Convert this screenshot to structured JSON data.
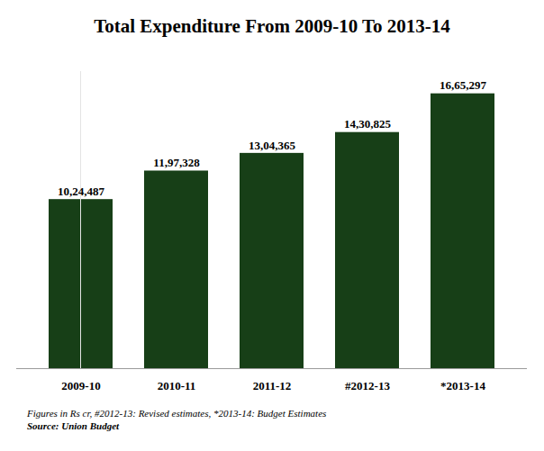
{
  "chart_data": {
    "type": "bar",
    "title": "Total Expenditure From 2009-10 To 2013-14",
    "categories": [
      "2009-10",
      "2010-11",
      "2011-12",
      "#2012-13",
      "*2013-14"
    ],
    "values": [
      1024487,
      1197328,
      1304365,
      1430825,
      1665297
    ],
    "value_labels": [
      "10,24,487",
      "11,97,328",
      "13,04,365",
      "14,30,825",
      "16,65,297"
    ],
    "data_labels": true,
    "color": "#173f17",
    "ylim": [
      0,
      1800000
    ],
    "tick_labels": "x",
    "grid": false,
    "annotations": [
      "Figures in Rs cr, #2012-13: Revised estimates, *2013-14: Budget Estimates",
      "Source: Union Budget"
    ]
  }
}
